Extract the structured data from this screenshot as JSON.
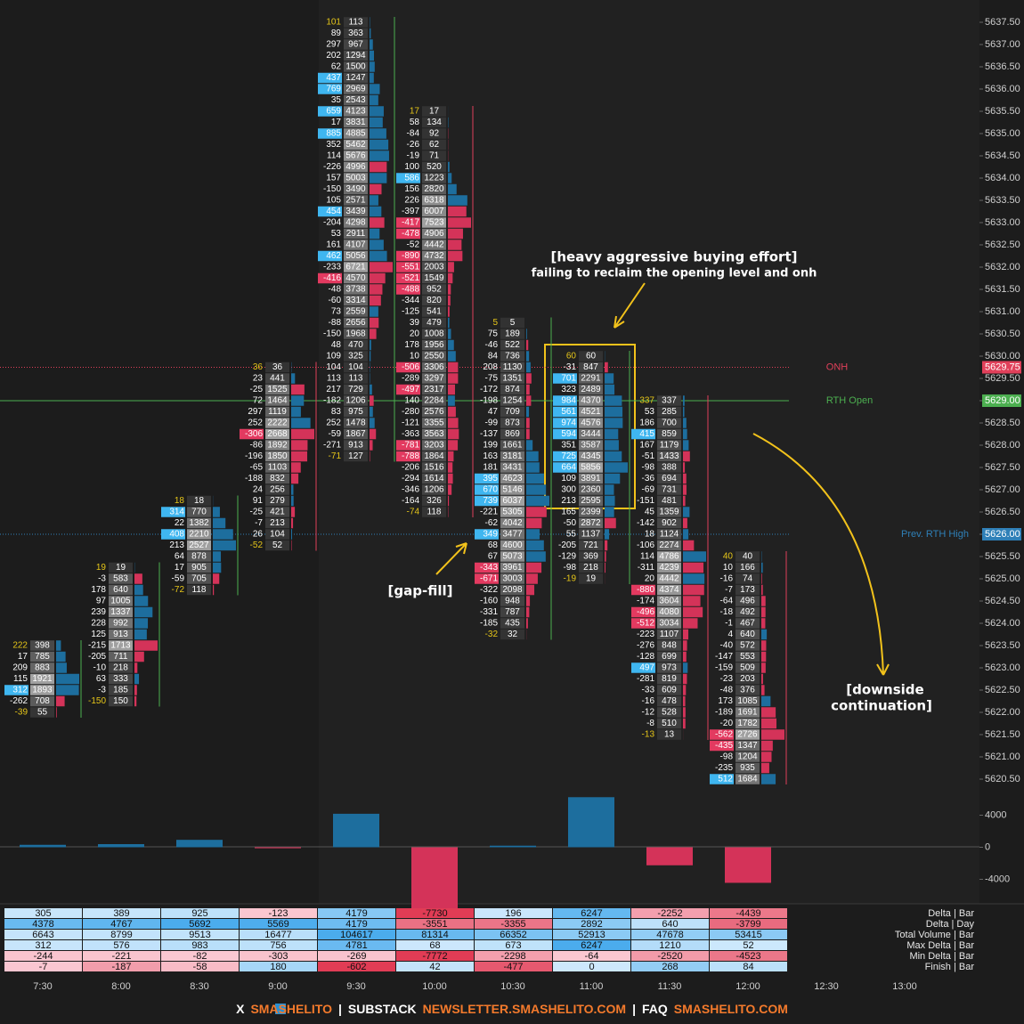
{
  "chart_data": {
    "type": "footprint",
    "price_axis": {
      "ylim": [
        5620.25,
        5638.0
      ],
      "ticks": [
        {
          "value": 5637.5,
          "label": "5637.50"
        },
        {
          "value": 5637.0,
          "label": "5637.00"
        },
        {
          "value": 5636.5,
          "label": "5636.50"
        },
        {
          "value": 5636.0,
          "label": "5636.00"
        },
        {
          "value": 5635.5,
          "label": "5635.50"
        },
        {
          "value": 5635.0,
          "label": "5635.00"
        },
        {
          "value": 5634.5,
          "label": "5634.50"
        },
        {
          "value": 5634.0,
          "label": "5634.00"
        },
        {
          "value": 5633.5,
          "label": "5633.50"
        },
        {
          "value": 5633.0,
          "label": "5633.00"
        },
        {
          "value": 5632.5,
          "label": "5632.50"
        },
        {
          "value": 5632.0,
          "label": "5632.00"
        },
        {
          "value": 5631.5,
          "label": "5631.50"
        },
        {
          "value": 5631.0,
          "label": "5631.00"
        },
        {
          "value": 5630.5,
          "label": "5630.50"
        },
        {
          "value": 5630.0,
          "label": "5630.00"
        },
        {
          "value": 5629.5,
          "label": "5629.50"
        },
        {
          "value": 5629.0,
          "label": "5629.00"
        },
        {
          "value": 5628.5,
          "label": "5628.50"
        },
        {
          "value": 5628.0,
          "label": "5628.00"
        },
        {
          "value": 5627.5,
          "label": "5627.50"
        },
        {
          "value": 5627.0,
          "label": "5627.00"
        },
        {
          "value": 5626.5,
          "label": "5626.50"
        },
        {
          "value": 5626.0,
          "label": "5626.00"
        },
        {
          "value": 5625.5,
          "label": "5625.50"
        },
        {
          "value": 5625.0,
          "label": "5625.00"
        },
        {
          "value": 5624.5,
          "label": "5624.50"
        },
        {
          "value": 5624.0,
          "label": "5624.00"
        },
        {
          "value": 5623.5,
          "label": "5623.50"
        },
        {
          "value": 5623.0,
          "label": "5623.00"
        },
        {
          "value": 5622.5,
          "label": "5622.50"
        },
        {
          "value": 5622.0,
          "label": "5622.00"
        },
        {
          "value": 5621.5,
          "label": "5621.50"
        },
        {
          "value": 5621.0,
          "label": "5621.00"
        },
        {
          "value": 5620.5,
          "label": "5620.50"
        }
      ]
    },
    "time_labels": [
      "7:30",
      "8:00",
      "8:30",
      "9:00",
      "9:30",
      "10:00",
      "10:30",
      "11:00",
      "11:30",
      "12:00",
      "12:30",
      "13:00"
    ],
    "bars": [
      {
        "top_price": 5623.5,
        "rows": [
          [
            222,
            398
          ],
          [
            17,
            785
          ],
          [
            209,
            883
          ],
          [
            115,
            1921
          ],
          [
            312,
            1893
          ],
          [
            -262,
            708
          ],
          [
            -39,
            55
          ]
        ]
      },
      {
        "top_price": 5625.25,
        "rows": [
          [
            19,
            19
          ],
          [
            -3,
            583
          ],
          [
            178,
            640
          ],
          [
            97,
            1005
          ],
          [
            239,
            1337
          ],
          [
            228,
            992
          ],
          [
            125,
            913
          ],
          [
            -215,
            1713
          ],
          [
            -205,
            711
          ],
          [
            -10,
            218
          ],
          [
            63,
            333
          ],
          [
            -3,
            185
          ],
          [
            -150,
            150
          ]
        ]
      },
      {
        "top_price": 5626.75,
        "rows": [
          [
            18,
            18
          ],
          [
            314,
            770
          ],
          [
            22,
            1382
          ],
          [
            408,
            2210
          ],
          [
            213,
            2527
          ],
          [
            64,
            878
          ],
          [
            17,
            905
          ],
          [
            -59,
            705
          ],
          [
            -72,
            118
          ]
        ]
      },
      {
        "top_price": 5629.75,
        "rows": [
          [
            36,
            36
          ],
          [
            23,
            441
          ],
          [
            -25,
            1525
          ],
          [
            72,
            1464
          ],
          [
            297,
            1119
          ],
          [
            252,
            2222
          ],
          [
            -306,
            2668
          ],
          [
            -86,
            1892
          ],
          [
            -196,
            1850
          ],
          [
            -65,
            1103
          ],
          [
            -188,
            832
          ],
          [
            24,
            256
          ],
          [
            91,
            279
          ],
          [
            -25,
            421
          ],
          [
            -7,
            213
          ],
          [
            26,
            104
          ],
          [
            -52,
            52
          ]
        ]
      },
      {
        "top_price": 5637.5,
        "rows": [
          [
            101,
            113
          ],
          [
            89,
            363
          ],
          [
            297,
            967
          ],
          [
            202,
            1294
          ],
          [
            62,
            1500
          ],
          [
            437,
            1247
          ],
          [
            769,
            2969
          ],
          [
            35,
            2543
          ],
          [
            659,
            4123
          ],
          [
            17,
            3831
          ],
          [
            885,
            4885
          ],
          [
            352,
            5462
          ],
          [
            114,
            5676
          ],
          [
            -226,
            4996
          ],
          [
            157,
            5003
          ],
          [
            -150,
            3490
          ],
          [
            105,
            2571
          ],
          [
            454,
            3439
          ],
          [
            -204,
            4298
          ],
          [
            53,
            2911
          ],
          [
            161,
            4107
          ],
          [
            462,
            5056
          ],
          [
            -233,
            6721
          ],
          [
            -416,
            4570
          ],
          [
            -48,
            3738
          ],
          [
            -60,
            3314
          ],
          [
            73,
            2559
          ],
          [
            -88,
            2656
          ],
          [
            -150,
            1968
          ],
          [
            48,
            470
          ],
          [
            109,
            325
          ],
          [
            104,
            104
          ],
          [
            113,
            113
          ],
          [
            217,
            729
          ],
          [
            -182,
            1206
          ],
          [
            83,
            975
          ],
          [
            252,
            1478
          ],
          [
            -59,
            1867
          ],
          [
            -271,
            913
          ],
          [
            -71,
            127
          ]
        ]
      },
      {
        "top_price": 5635.5,
        "rows": [
          [
            17,
            17
          ],
          [
            58,
            134
          ],
          [
            -84,
            92
          ],
          [
            -26,
            62
          ],
          [
            -19,
            71
          ],
          [
            100,
            520
          ],
          [
            586,
            1223
          ],
          [
            156,
            2820
          ],
          [
            226,
            6318
          ],
          [
            -397,
            6007
          ],
          [
            -417,
            7523
          ],
          [
            -478,
            4906
          ],
          [
            -52,
            4442
          ],
          [
            -890,
            4732
          ],
          [
            -551,
            2003
          ],
          [
            -521,
            1549
          ],
          [
            -488,
            952
          ],
          [
            -344,
            820
          ],
          [
            -125,
            541
          ],
          [
            39,
            479
          ],
          [
            20,
            1008
          ],
          [
            178,
            1956
          ],
          [
            10,
            2550
          ],
          [
            -506,
            3306
          ],
          [
            -289,
            3297
          ],
          [
            -497,
            2317
          ],
          [
            140,
            2284
          ],
          [
            -280,
            2576
          ],
          [
            -121,
            3355
          ],
          [
            -363,
            3563
          ],
          [
            -781,
            3203
          ],
          [
            -788,
            1864
          ],
          [
            -206,
            1516
          ],
          [
            -294,
            1614
          ],
          [
            -346,
            1206
          ],
          [
            -164,
            326
          ],
          [
            -74,
            118
          ]
        ]
      },
      {
        "top_price": 5630.75,
        "rows": [
          [
            5,
            5
          ],
          [
            75,
            189
          ],
          [
            -46,
            522
          ],
          [
            84,
            736
          ],
          [
            208,
            1130
          ],
          [
            -75,
            1351
          ],
          [
            -172,
            874
          ],
          [
            -198,
            1254
          ],
          [
            47,
            709
          ],
          [
            -99,
            873
          ],
          [
            -137,
            869
          ],
          [
            199,
            1661
          ],
          [
            163,
            3181
          ],
          [
            181,
            3431
          ],
          [
            395,
            4623
          ],
          [
            670,
            5146
          ],
          [
            739,
            6037
          ],
          [
            -221,
            5305
          ],
          [
            -62,
            4042
          ],
          [
            349,
            3477
          ],
          [
            68,
            4600
          ],
          [
            67,
            5073
          ],
          [
            -343,
            3961
          ],
          [
            -671,
            3003
          ],
          [
            -322,
            2098
          ],
          [
            -160,
            948
          ],
          [
            -331,
            787
          ],
          [
            -185,
            435
          ],
          [
            -32,
            32
          ]
        ]
      },
      {
        "top_price": 5630.0,
        "rows": [
          [
            60,
            60
          ],
          [
            -31,
            847
          ],
          [
            701,
            2291
          ],
          [
            323,
            2489
          ],
          [
            984,
            4370
          ],
          [
            561,
            4521
          ],
          [
            974,
            4576
          ],
          [
            594,
            3444
          ],
          [
            351,
            3587
          ],
          [
            725,
            4345
          ],
          [
            664,
            5856
          ],
          [
            109,
            3891
          ],
          [
            300,
            2360
          ],
          [
            213,
            2595
          ],
          [
            165,
            2399
          ],
          [
            -50,
            2872
          ],
          [
            55,
            1137
          ],
          [
            -205,
            721
          ],
          [
            -129,
            369
          ],
          [
            -98,
            218
          ],
          [
            -19,
            19
          ]
        ]
      },
      {
        "top_price": 5629.0,
        "rows": [
          [
            337,
            337
          ],
          [
            53,
            285
          ],
          [
            186,
            700
          ],
          [
            415,
            859
          ],
          [
            167,
            1179
          ],
          [
            -51,
            1433
          ],
          [
            -98,
            388
          ],
          [
            -36,
            694
          ],
          [
            -69,
            731
          ],
          [
            -151,
            481
          ],
          [
            45,
            1359
          ],
          [
            -142,
            902
          ],
          [
            18,
            1124
          ],
          [
            -106,
            2274
          ],
          [
            114,
            4786
          ],
          [
            -311,
            4239
          ],
          [
            20,
            4442
          ],
          [
            -880,
            4374
          ],
          [
            -174,
            3604
          ],
          [
            -496,
            4080
          ],
          [
            -512,
            3034
          ],
          [
            -223,
            1107
          ],
          [
            -276,
            848
          ],
          [
            -128,
            699
          ],
          [
            497,
            973
          ],
          [
            -281,
            819
          ],
          [
            -33,
            609
          ],
          [
            -16,
            478
          ],
          [
            -12,
            528
          ],
          [
            -8,
            510
          ],
          [
            -13,
            13
          ]
        ]
      },
      {
        "top_price": 5625.5,
        "rows": [
          [
            40,
            40
          ],
          [
            10,
            166
          ],
          [
            -16,
            74
          ],
          [
            -7,
            173
          ],
          [
            -64,
            496
          ],
          [
            -18,
            492
          ],
          [
            -1,
            467
          ],
          [
            4,
            640
          ],
          [
            -40,
            572
          ],
          [
            -147,
            553
          ],
          [
            -159,
            509
          ],
          [
            -23,
            203
          ],
          [
            -48,
            376
          ],
          [
            173,
            1085
          ],
          [
            -189,
            1691
          ],
          [
            -20,
            1782
          ],
          [
            -562,
            2726
          ],
          [
            -435,
            1347
          ],
          [
            -98,
            1204
          ],
          [
            -235,
            935
          ],
          [
            512,
            1684
          ]
        ]
      }
    ],
    "levels": [
      {
        "name": "ONH",
        "price": {
          "value": 5629.75,
          "label": "5629.75"
        },
        "color": "#e0405a",
        "style": "dotted"
      },
      {
        "name": "RTH Open",
        "price": {
          "value": 5629.0,
          "label": "5629.00"
        },
        "color": "#4caf50",
        "style": "solid"
      },
      {
        "name": "Prev. RTH High",
        "price": {
          "value": 5626.0,
          "label": "5626.00"
        },
        "color": "#2f80b8",
        "style": "dotted"
      }
    ],
    "delta_pane": {
      "ylim": [
        -7500,
        6500
      ],
      "ticks": [
        4000,
        0,
        -4000
      ]
    },
    "summary": {
      "row_labels": [
        "Delta | Bar",
        "Delta | Day",
        "Total Volume | Bar",
        "Max Delta | Bar",
        "Min Delta | Bar",
        "Finish | Bar"
      ],
      "rows": [
        [
          305,
          389,
          925,
          -123,
          4179,
          -7730,
          196,
          6247,
          -2252,
          -4439
        ],
        [
          4378,
          4767,
          5692,
          5569,
          4179,
          -3551,
          -3355,
          2892,
          640,
          -3799
        ],
        [
          6643,
          8799,
          9513,
          16477,
          104617,
          81314,
          66352,
          52913,
          47678,
          53415
        ],
        [
          312,
          576,
          983,
          756,
          4781,
          68,
          673,
          6247,
          1210,
          52
        ],
        [
          -244,
          -221,
          -82,
          -303,
          -269,
          -7772,
          -2298,
          -64,
          -2520,
          -4523
        ],
        [
          -7,
          -187,
          -58,
          180,
          -602,
          42,
          -477,
          0,
          268,
          84
        ]
      ]
    },
    "annotations": {
      "heavy_title": "[heavy aggressive buying effort]",
      "heavy_sub": "failing to reclaim the opening level and onh",
      "gap_fill": "[gap-fill]",
      "downside_1": "[downside",
      "downside_2": "continuation]"
    },
    "footer": [
      {
        "text": "X",
        "accent": false
      },
      {
        "text": "SMASHELITO",
        "accent": true
      },
      {
        "text": "|",
        "accent": false
      },
      {
        "text": "SUBSTACK",
        "accent": false
      },
      {
        "text": "NEWSLETTER.SMASHELITO.COM",
        "accent": true
      },
      {
        "text": "|",
        "accent": false
      },
      {
        "text": "FAQ",
        "accent": false
      },
      {
        "text": "SMASHELITO.COM",
        "accent": true
      }
    ]
  }
}
